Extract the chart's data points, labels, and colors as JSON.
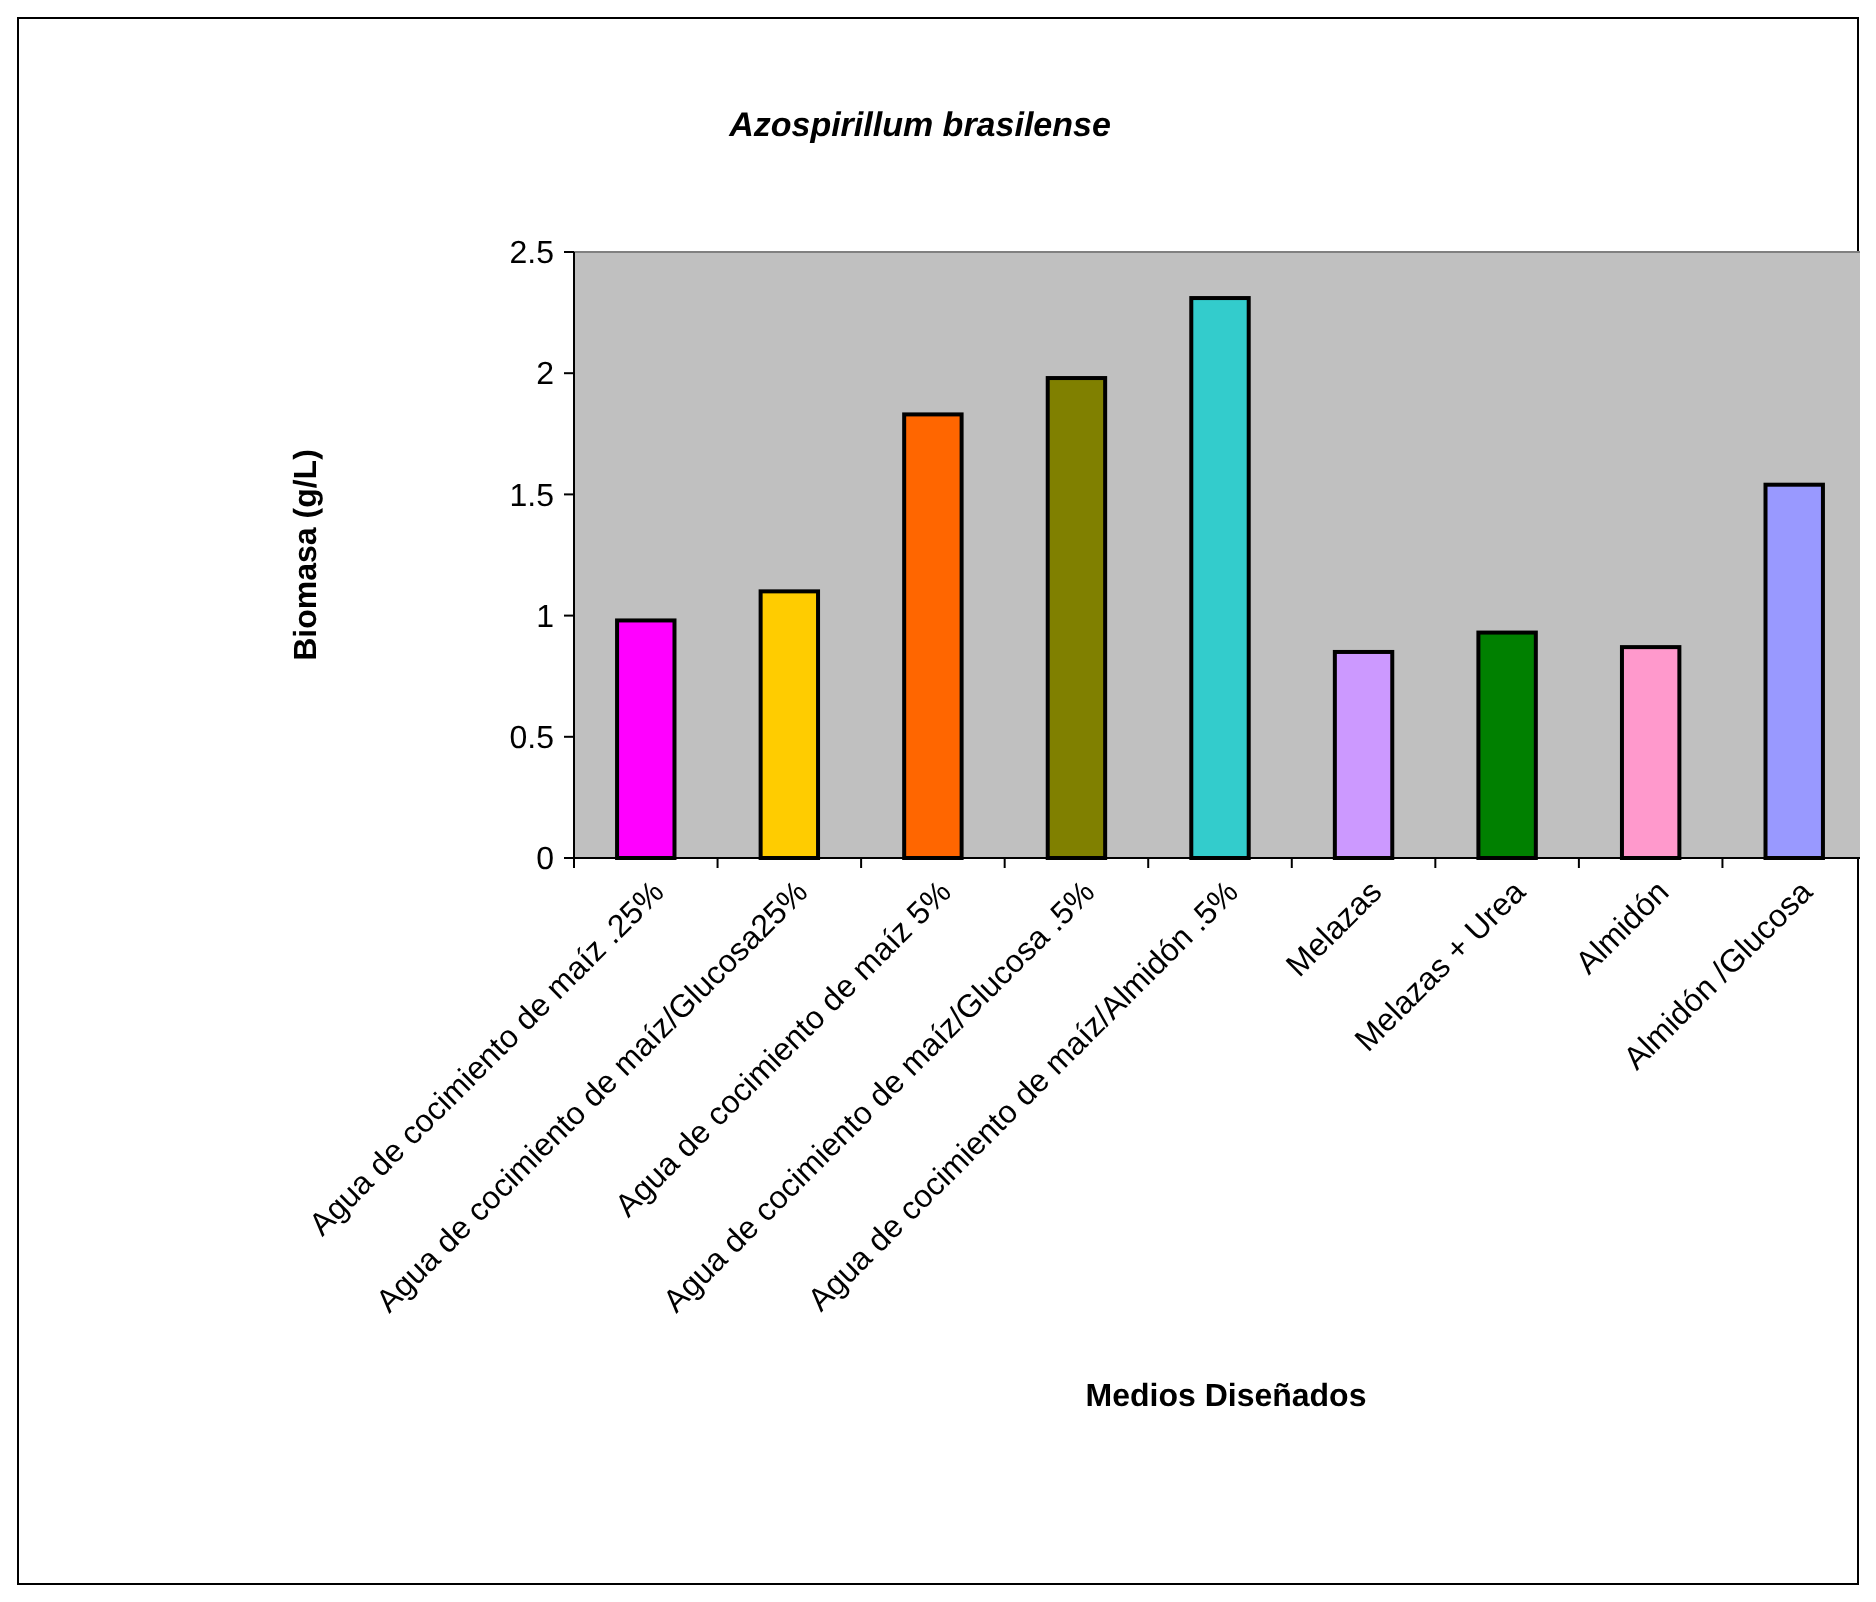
{
  "chart_data": {
    "type": "bar",
    "title": "Azospirillum brasilense",
    "xlabel": "Medios Diseñados",
    "ylabel": "Biomasa (g/L)",
    "categories": [
      "Agua de cocimiento de maíz .25%",
      "Agua de cocimiento de maíz/Glucosa25%",
      "Agua de cocimiento de maíz 5%",
      "Agua de cocimiento de maíz/Glucosa .5%",
      "Agua de cocimiento de maíz/Almidón .5%",
      "Melazas",
      "Melazas +  Urea",
      "Almidón",
      "Almidón /Glucosa"
    ],
    "values": [
      0.98,
      1.1,
      1.83,
      1.98,
      2.31,
      0.85,
      0.93,
      0.87,
      1.54
    ],
    "colors": [
      "#ff00ff",
      "#ffcc00",
      "#ff6600",
      "#808000",
      "#33cccc",
      "#cc99ff",
      "#008000",
      "#ff99cc",
      "#9999ff"
    ],
    "ylim": [
      0,
      2.5
    ],
    "yticks": [
      0,
      0.5,
      1,
      1.5,
      2,
      2.5
    ],
    "grid": false
  }
}
